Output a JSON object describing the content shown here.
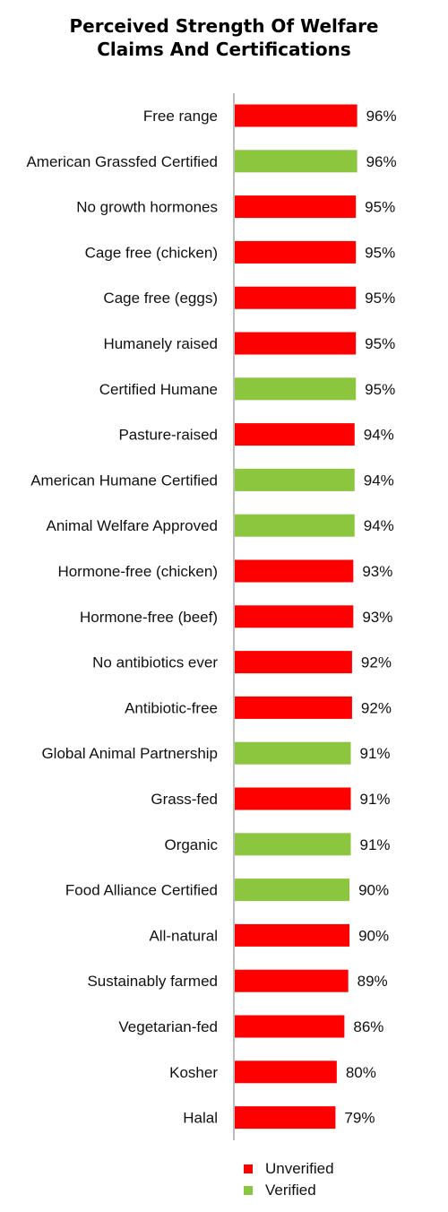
{
  "chart_data": {
    "type": "bar",
    "orientation": "horizontal",
    "title_lines": [
      "Perceived Strength Of Welfare",
      "Claims And Certifications"
    ],
    "xlabel": "",
    "ylabel": "",
    "xlim": [
      0,
      100
    ],
    "grid": false,
    "legend_position": "bottom",
    "colors": {
      "Unverified": "#ff0000",
      "Verified": "#8cc63f"
    },
    "categories": [
      "Free range",
      "American Grassfed Certified",
      "No growth hormones",
      "Cage free (chicken)",
      "Cage free (eggs)",
      "Humanely raised",
      "Certified Humane",
      "Pasture-raised",
      "American Humane Certified",
      "Animal Welfare Approved",
      "Hormone-free (chicken)",
      "Hormone-free (beef)",
      "No antibiotics ever",
      "Antibiotic-free",
      "Global Animal Partnership",
      "Grass-fed",
      "Organic",
      "Food Alliance Certified",
      "All-natural",
      "Sustainably farmed",
      "Vegetarian-fed",
      "Kosher",
      "Halal"
    ],
    "values": [
      96,
      96,
      95,
      95,
      95,
      95,
      95,
      94,
      94,
      94,
      93,
      93,
      92,
      92,
      91,
      91,
      91,
      90,
      90,
      89,
      86,
      80,
      79
    ],
    "value_labels": [
      "96%",
      "96%",
      "95%",
      "95%",
      "95%",
      "95%",
      "95%",
      "94%",
      "94%",
      "94%",
      "93%",
      "93%",
      "92%",
      "92%",
      "91%",
      "91%",
      "91%",
      "90%",
      "90%",
      "89%",
      "86%",
      "80%",
      "79%"
    ],
    "groups": [
      "Unverified",
      "Verified",
      "Unverified",
      "Unverified",
      "Unverified",
      "Unverified",
      "Verified",
      "Unverified",
      "Verified",
      "Verified",
      "Unverified",
      "Unverified",
      "Unverified",
      "Unverified",
      "Verified",
      "Unverified",
      "Verified",
      "Verified",
      "Unverified",
      "Unverified",
      "Unverified",
      "Unverified",
      "Unverified"
    ],
    "legend": [
      "Unverified",
      "Verified"
    ]
  }
}
